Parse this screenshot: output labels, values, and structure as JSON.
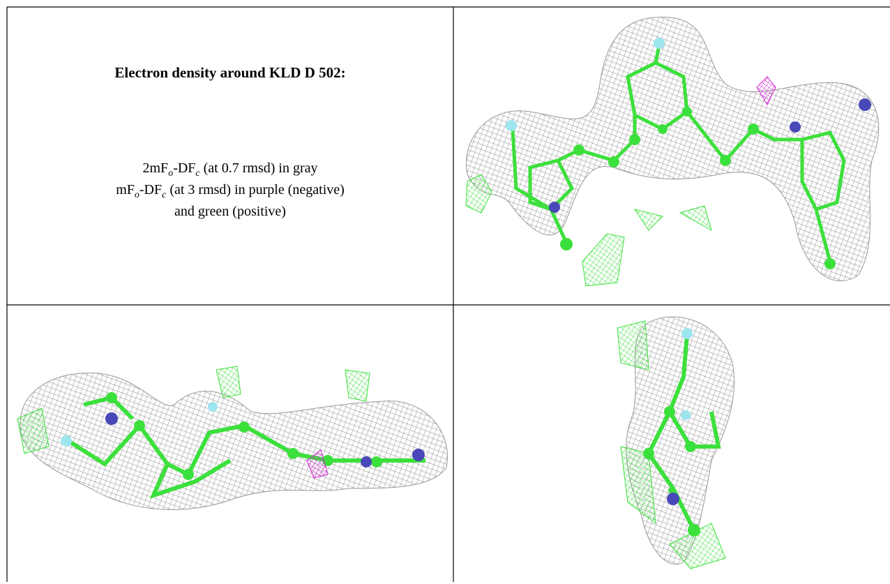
{
  "caption": {
    "title": "Electron density around KLD D 502:",
    "lines": [
      [
        "2mF",
        "o",
        "-DF",
        "c",
        " (at 0.7 rmsd) in gray"
      ],
      [
        "mF",
        "o",
        "-DF",
        "c",
        " (at 3 rmsd) in purple (negative)"
      ],
      [
        "and green (positive)"
      ]
    ]
  }
}
